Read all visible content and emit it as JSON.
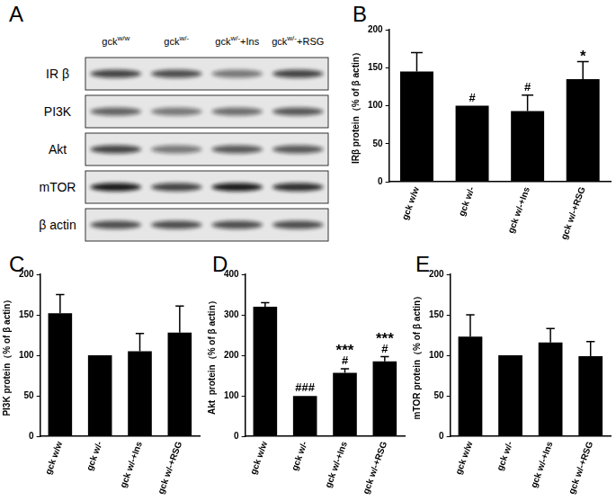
{
  "blot": {
    "label": "A",
    "columns": [
      {
        "text": "gck",
        "superscript": "w/w"
      },
      {
        "text": "gck",
        "superscript": "w/-"
      },
      {
        "text": "gck",
        "superscript": "w/-",
        "suffix": "+Ins"
      },
      {
        "text": "gck",
        "superscript": "w/-",
        "suffix": "+RSG"
      }
    ],
    "rows": [
      "IR β",
      "PI3K",
      "Akt",
      "mTOR",
      "β actin"
    ]
  },
  "chart_data": [
    {
      "panel": "B",
      "type": "bar",
      "y_label": "IRβ protein（% of β actin）",
      "categories": [
        "gck w/w",
        "gck w/-",
        "gck w/-+Ins",
        "gck w/-+RSG"
      ],
      "values": [
        145,
        100,
        93,
        135
      ],
      "errors": [
        25,
        null,
        21,
        23
      ],
      "significance": [
        null,
        [
          "#"
        ],
        [
          "#"
        ],
        [
          "*"
        ]
      ],
      "color": "#000000",
      "ylim": [
        0,
        200
      ],
      "yticks": [
        0,
        50,
        100,
        150,
        200
      ],
      "grid": false
    },
    {
      "panel": "C",
      "type": "bar",
      "y_label": "PI3K protein（% of β actin）",
      "categories": [
        "gck w/w",
        "gck w/-",
        "gck w/-+Ins",
        "gck w/-+RSG"
      ],
      "values": [
        152,
        100,
        105,
        128
      ],
      "errors": [
        23,
        null,
        22,
        33
      ],
      "significance": [
        null,
        null,
        null,
        null
      ],
      "color": "#000000",
      "ylim": [
        0,
        200
      ],
      "yticks": [
        0,
        50,
        100,
        150,
        200
      ],
      "grid": false
    },
    {
      "panel": "D",
      "type": "bar",
      "y_label": "Akt  protein（% of β actin）",
      "categories": [
        "gck w/w",
        "gck w/-",
        "gck w/-+Ins",
        "gck w/-+RSG"
      ],
      "values": [
        320,
        100,
        157,
        185
      ],
      "errors": [
        10,
        null,
        10,
        12
      ],
      "significance": [
        null,
        [
          "###"
        ],
        [
          "***",
          "#"
        ],
        [
          "***",
          "#"
        ]
      ],
      "color": "#000000",
      "ylim": [
        0,
        400
      ],
      "yticks": [
        0,
        100,
        200,
        300,
        400
      ],
      "grid": false
    },
    {
      "panel": "E",
      "type": "bar",
      "y_label": "mTOR protein（% of β actin）",
      "categories": [
        "gck w/w",
        "gck w/-",
        "gck w/-+Ins",
        "gck w/-+RSG"
      ],
      "values": [
        123,
        100,
        116,
        99
      ],
      "errors": [
        27,
        null,
        17,
        18
      ],
      "significance": [
        null,
        null,
        null,
        null
      ],
      "color": "#000000",
      "ylim": [
        0,
        200
      ],
      "yticks": [
        0,
        50,
        100,
        150,
        200
      ],
      "grid": false
    }
  ]
}
